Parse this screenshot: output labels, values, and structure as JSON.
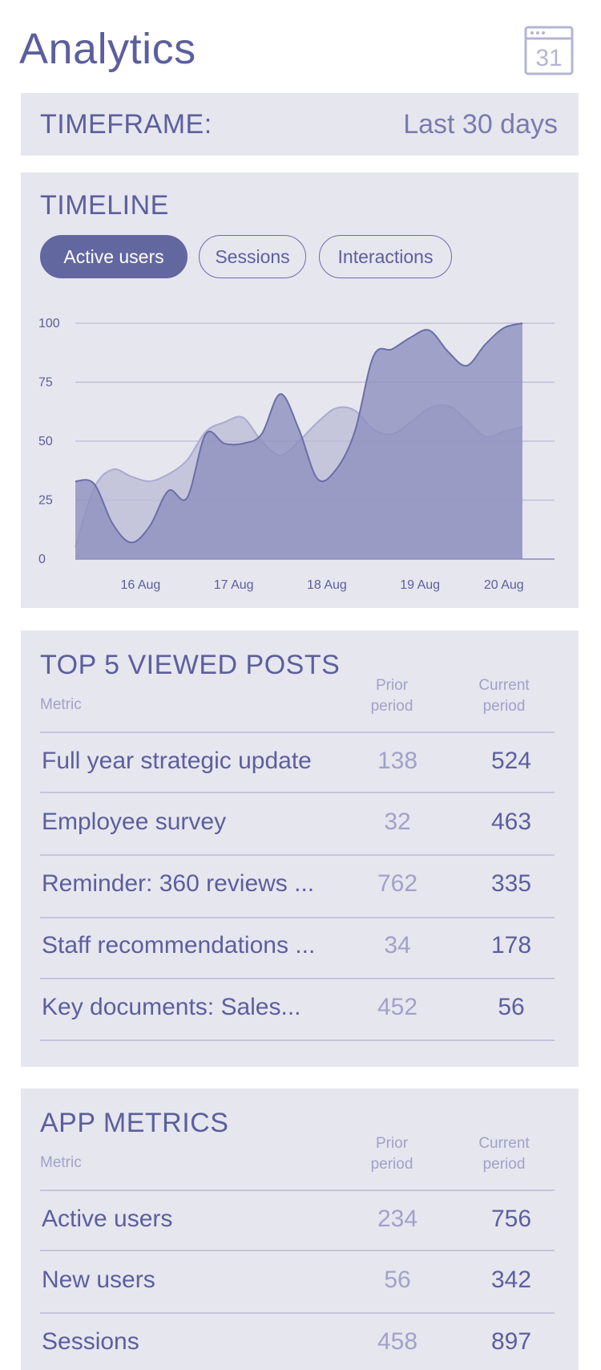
{
  "header": {
    "title": "Analytics",
    "calendar_day": "31",
    "calendar_icon": "calendar-icon"
  },
  "timeframe": {
    "label": "TIMEFRAME:",
    "value": "Last 30 days"
  },
  "timeline": {
    "title": "TIMELINE",
    "tabs": [
      {
        "label": "Active users",
        "active": true
      },
      {
        "label": "Sessions",
        "active": false
      },
      {
        "label": "Interactions",
        "active": false
      }
    ]
  },
  "chart_data": {
    "type": "area",
    "x": [
      0,
      0.2,
      0.4,
      0.6,
      0.8,
      1.0,
      1.2,
      1.4,
      1.6,
      1.8,
      2.0,
      2.2,
      2.4,
      2.6,
      2.8,
      3.0,
      3.2,
      3.4,
      3.6,
      3.8,
      4.0,
      4.2,
      4.4,
      4.6,
      4.8
    ],
    "x_ticks": [
      {
        "x": 0.7,
        "label": "16 Aug"
      },
      {
        "x": 1.7,
        "label": "17 Aug"
      },
      {
        "x": 2.7,
        "label": "18 Aug"
      },
      {
        "x": 3.7,
        "label": "19 Aug"
      },
      {
        "x": 4.6,
        "label": "20 Aug"
      }
    ],
    "y_ticks": [
      0,
      25,
      50,
      75,
      100
    ],
    "ylim": [
      0,
      100
    ],
    "grid": true,
    "colors": {
      "back": "#b9bad6",
      "front": "#8e90bf",
      "line": "#6b6ea8"
    },
    "series": [
      {
        "values": [
          5,
          30,
          38,
          35,
          33,
          36,
          42,
          54,
          58,
          60,
          50,
          44,
          50,
          58,
          64,
          63,
          55,
          53,
          58,
          64,
          65,
          59,
          52,
          54,
          56
        ]
      },
      {
        "values": [
          33,
          32,
          15,
          7,
          14,
          29,
          26,
          53,
          49,
          49,
          53,
          70,
          55,
          34,
          38,
          54,
          86,
          89,
          94,
          97,
          88,
          82,
          91,
          98,
          100
        ]
      }
    ]
  },
  "posts": {
    "title": "TOP 5 VIEWED POSTS",
    "metric_header": "Metric",
    "prior_header_line1": "Prior",
    "prior_header_line2": "period",
    "current_header_line1": "Current",
    "current_header_line2": "period",
    "rows": [
      {
        "name": "Full year strategic update",
        "prior": "138",
        "current": "524"
      },
      {
        "name": "Employee survey",
        "prior": "32",
        "current": "463"
      },
      {
        "name": "Reminder: 360 reviews ...",
        "prior": "762",
        "current": "335"
      },
      {
        "name": "Staff recommendations ...",
        "prior": "34",
        "current": "178"
      },
      {
        "name": "Key documents: Sales...",
        "prior": "452",
        "current": "56"
      }
    ]
  },
  "metrics": {
    "title": "APP METRICS",
    "metric_header": "Metric",
    "prior_header_line1": "Prior",
    "prior_header_line2": "period",
    "current_header_line1": "Current",
    "current_header_line2": "period",
    "rows": [
      {
        "name": "Active users",
        "prior": "234",
        "current": "756"
      },
      {
        "name": "New users",
        "prior": "56",
        "current": "342"
      },
      {
        "name": "Sessions",
        "prior": "458",
        "current": "897"
      }
    ]
  }
}
